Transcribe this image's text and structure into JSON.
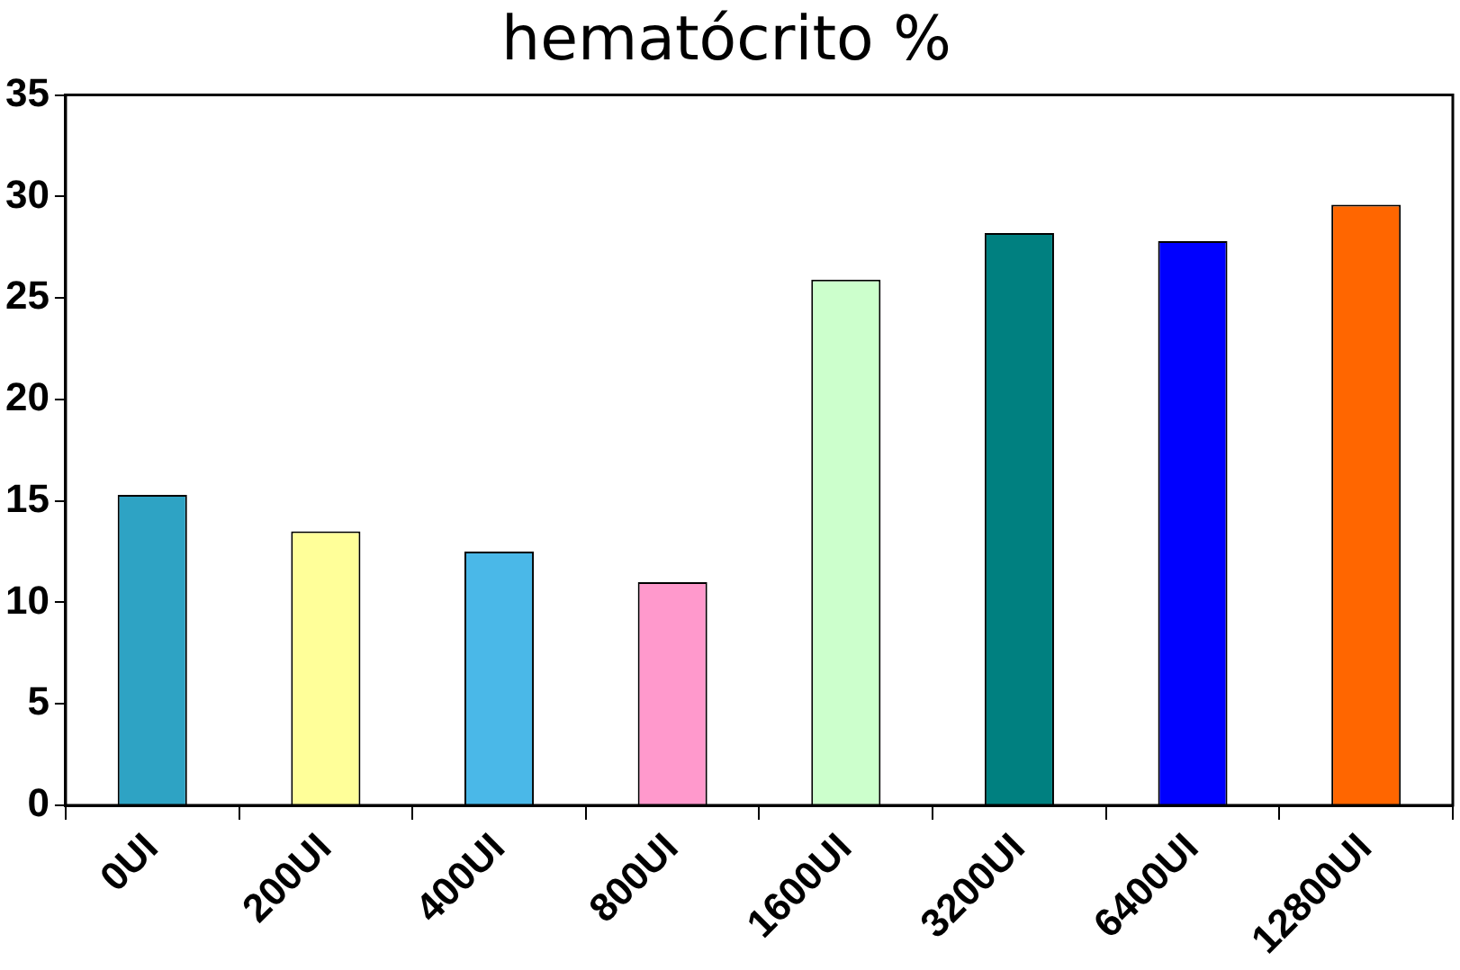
{
  "chart_data": {
    "type": "bar",
    "title": "hematócrito %",
    "categories": [
      "0UI",
      "200UI",
      "400UI",
      "800UI",
      "1600UI",
      "3200UI",
      "6400UI",
      "12800UI"
    ],
    "values": [
      15.3,
      13.5,
      12.5,
      11.0,
      25.9,
      28.2,
      27.8,
      29.6
    ],
    "colors": [
      "#2ea3c4",
      "#ffff99",
      "#4ab8e8",
      "#ff99cc",
      "#ccffcc",
      "#008080",
      "#0000ff",
      "#ff6600"
    ],
    "ylim": [
      0,
      35
    ],
    "yticks": [
      0,
      5,
      10,
      15,
      20,
      25,
      30,
      35
    ],
    "grid": false,
    "legend": false
  }
}
